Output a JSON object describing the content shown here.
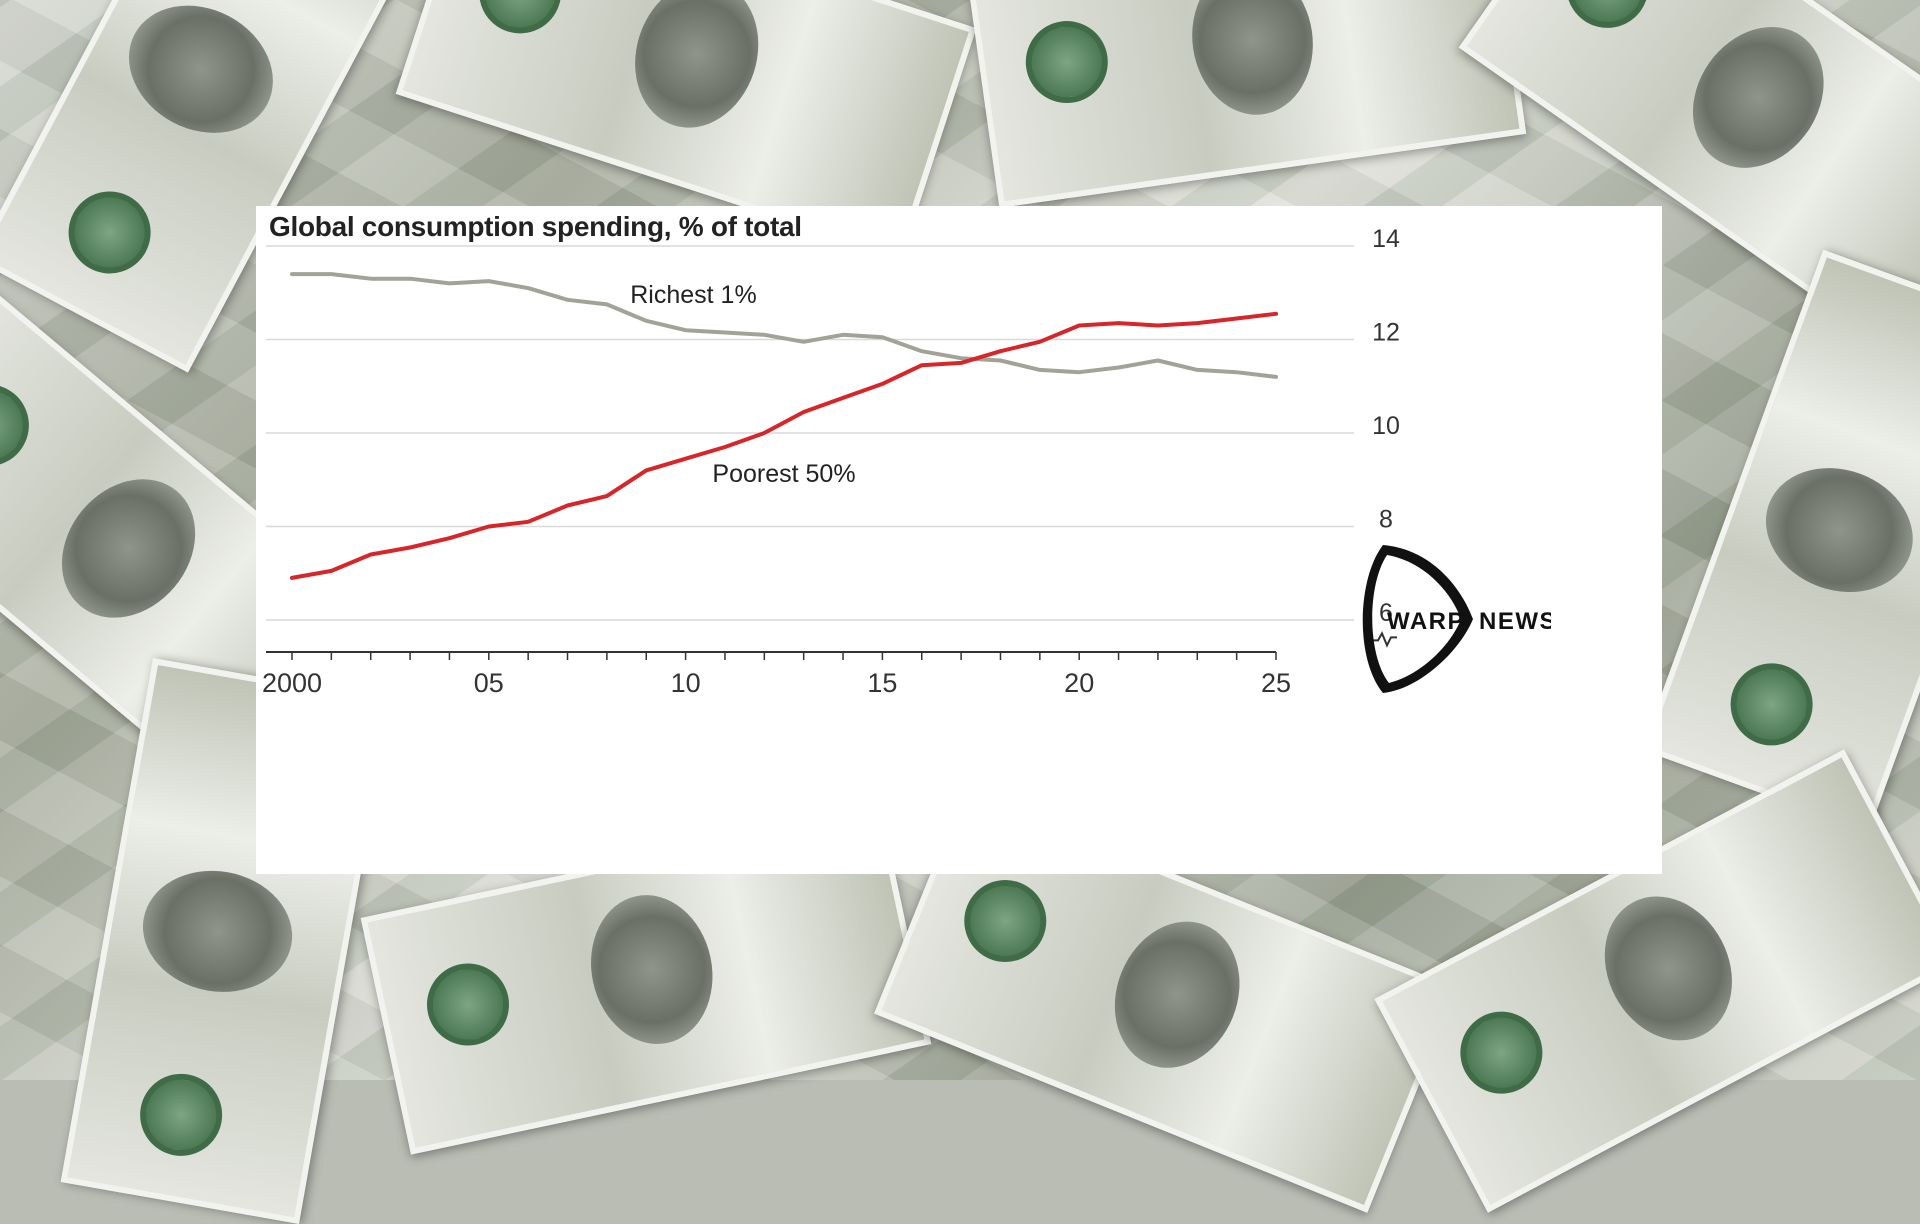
{
  "chart_data": {
    "type": "line",
    "title": "Global consumption spending, % of total",
    "xlabel": "",
    "ylabel": "",
    "xlim": [
      2000,
      2025
    ],
    "ylim": [
      6,
      14
    ],
    "y_ticks": [
      "14",
      "12",
      "10",
      "8",
      "6"
    ],
    "x_tick_labels": [
      "2000",
      "05",
      "10",
      "15",
      "20",
      "25"
    ],
    "y_axis_position": "right",
    "y_axis_break": true,
    "grid": true,
    "series": [
      {
        "name": "Richest 1%",
        "color": "#a3a297",
        "x": [
          2000,
          2001,
          2002,
          2003,
          2004,
          2005,
          2006,
          2007,
          2008,
          2009,
          2010,
          2011,
          2012,
          2013,
          2014,
          2015,
          2016,
          2017,
          2018,
          2019,
          2020,
          2021,
          2022,
          2023,
          2024,
          2025
        ],
        "values": [
          13.4,
          13.4,
          13.3,
          13.3,
          13.2,
          13.25,
          13.1,
          12.85,
          12.75,
          12.4,
          12.2,
          12.15,
          12.1,
          11.95,
          12.1,
          12.05,
          11.75,
          11.6,
          11.55,
          11.35,
          11.3,
          11.4,
          11.55,
          11.35,
          11.3,
          11.2
        ],
        "label_text": "Richest 1%"
      },
      {
        "name": "Poorest 50%",
        "color": "#d7262a",
        "x": [
          2000,
          2001,
          2002,
          2003,
          2004,
          2005,
          2006,
          2007,
          2008,
          2009,
          2010,
          2011,
          2012,
          2013,
          2014,
          2015,
          2016,
          2017,
          2018,
          2019,
          2020,
          2021,
          2022,
          2023,
          2024,
          2025
        ],
        "values": [
          6.9,
          7.05,
          7.4,
          7.55,
          7.75,
          8.0,
          8.1,
          8.45,
          8.65,
          9.2,
          9.45,
          9.7,
          10.0,
          10.45,
          10.75,
          11.05,
          11.45,
          11.5,
          11.75,
          11.95,
          12.3,
          12.35,
          12.3,
          12.35,
          12.45,
          12.55
        ],
        "label_text": "Poorest 50%"
      }
    ]
  },
  "logo": {
    "left_word": "WARP",
    "right_word": "NEWS",
    "color": "#111111"
  },
  "colors": {
    "card_background": "#ffffff",
    "grid": "#d9d9d9",
    "axis": "#333333"
  }
}
